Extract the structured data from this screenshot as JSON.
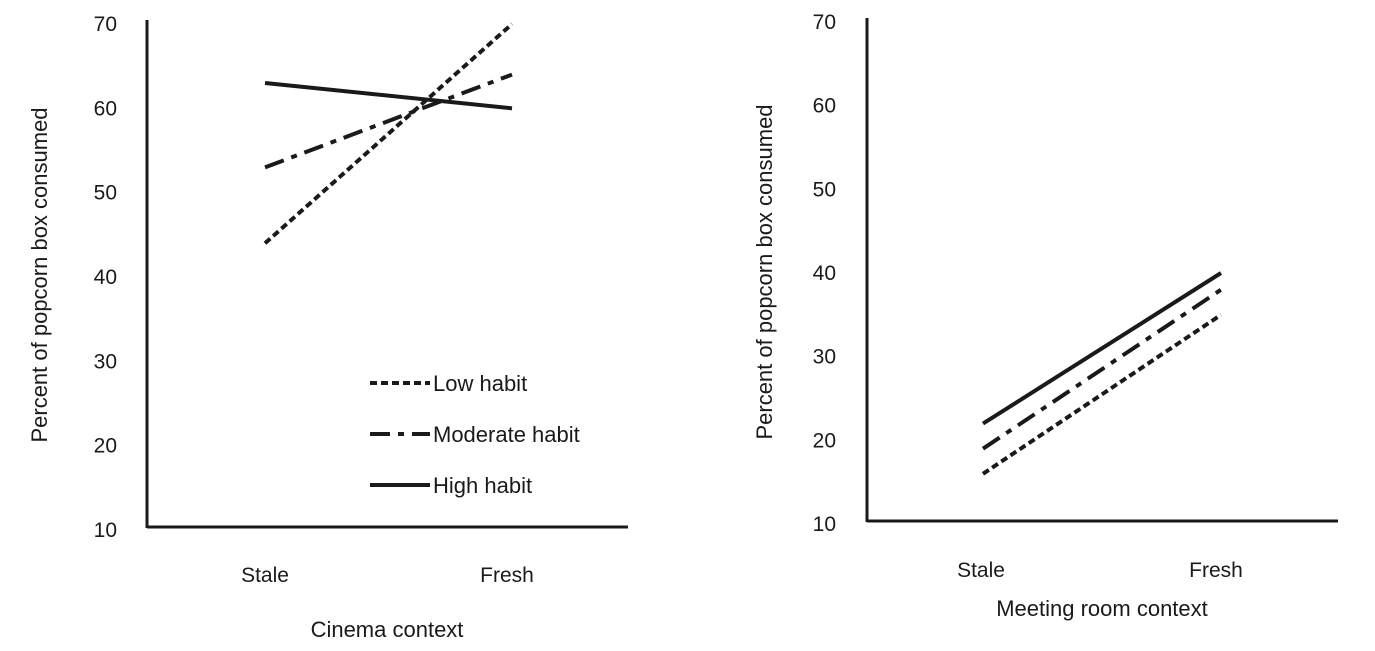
{
  "chart_data": [
    {
      "type": "line",
      "title": "",
      "xlabel": "Cinema context",
      "ylabel": "Percent of popcorn box consumed",
      "categories": [
        "Stale",
        "Fresh"
      ],
      "ylim": [
        10,
        70
      ],
      "yticks": [
        "10",
        "20",
        "30",
        "40",
        "50",
        "60",
        "70"
      ],
      "grid": false,
      "legend": {
        "placement": "bottom-right"
      },
      "series": [
        {
          "name": "Low habit",
          "style": "dotted",
          "values": [
            44,
            70
          ]
        },
        {
          "name": "Moderate habit",
          "style": "dash-dot",
          "values": [
            53,
            64
          ]
        },
        {
          "name": "High habit",
          "style": "solid",
          "values": [
            63,
            60
          ]
        }
      ]
    },
    {
      "type": "line",
      "title": "",
      "xlabel": "Meeting room context",
      "ylabel": "Percent of popcorn box consumed",
      "categories": [
        "Stale",
        "Fresh"
      ],
      "ylim": [
        10,
        70
      ],
      "yticks": [
        "10",
        "20",
        "30",
        "40",
        "50",
        "60",
        "70"
      ],
      "grid": false,
      "series": [
        {
          "style": "dotted",
          "values": [
            16,
            35
          ]
        },
        {
          "style": "dash-dot",
          "values": [
            19,
            38
          ]
        },
        {
          "style": "solid",
          "values": [
            22,
            40
          ]
        }
      ]
    }
  ]
}
